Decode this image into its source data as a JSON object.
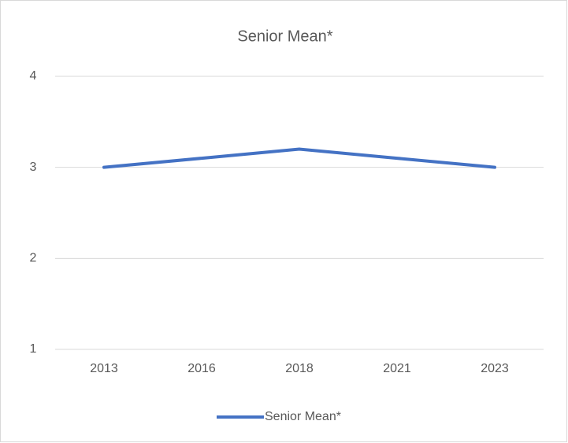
{
  "chart_data": {
    "type": "line",
    "title": "Senior Mean*",
    "categories": [
      "2013",
      "2016",
      "2018",
      "2021",
      "2023"
    ],
    "series": [
      {
        "name": "Senior Mean*",
        "color": "#4472c4",
        "values": [
          3,
          3.1,
          3.2,
          3.1,
          3
        ]
      }
    ],
    "ylim": [
      1,
      4
    ],
    "yticks": [
      1,
      2,
      3,
      4
    ],
    "grid": true,
    "legend": "bottom"
  }
}
